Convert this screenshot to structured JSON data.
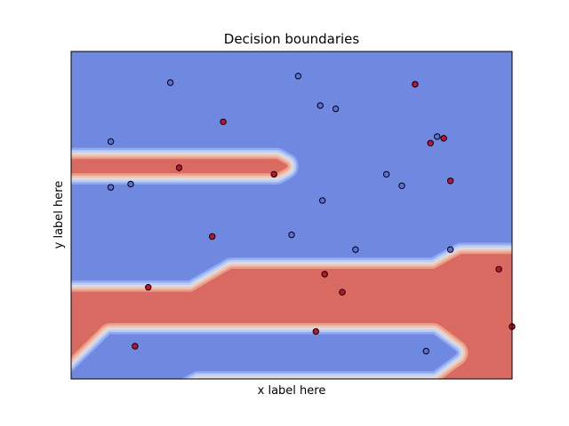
{
  "chart_data": {
    "type": "scatter",
    "title": "Decision boundaries",
    "xlabel": "x label here",
    "ylabel": "y label here",
    "xlim": [
      0,
      100
    ],
    "ylim": [
      0,
      100
    ],
    "ticks_visible": false,
    "grid": false,
    "legend": "none",
    "background": "filled decision-region contours (coolwarm)",
    "class_colors": {
      "0": "#5a6fd8",
      "1": "#c8102e"
    },
    "region_colors": {
      "0": "#7089e0",
      "1": "#d86a62"
    },
    "band_colors": [
      "#7089e0",
      "#93abf0",
      "#b8cdf8",
      "#dcdcdc",
      "#f2c1ad",
      "#eb9d86",
      "#d86a62"
    ],
    "regions": [
      {
        "class": 1,
        "shape": "upper-left arrow band",
        "points": [
          [
            0,
            66.5
          ],
          [
            46.5,
            66.5
          ],
          [
            48.5,
            65
          ],
          [
            46.5,
            63.5
          ],
          [
            0,
            63.5
          ]
        ]
      },
      {
        "class": 1,
        "shape": "lower-right region",
        "points": [
          [
            0,
            26
          ],
          [
            27.5,
            26
          ],
          [
            36.5,
            33
          ],
          [
            82.5,
            33
          ],
          [
            88.5,
            37.5
          ],
          [
            100,
            37.5
          ],
          [
            100,
            0
          ],
          [
            0,
            0
          ]
        ]
      },
      {
        "class": 0,
        "shape": "bottom arrow band",
        "points": [
          [
            0,
            1
          ],
          [
            9,
            13
          ],
          [
            82,
            13
          ],
          [
            87,
            8
          ],
          [
            82,
            3
          ],
          [
            28,
            3
          ],
          [
            24,
            0
          ],
          [
            0,
            0
          ]
        ]
      }
    ],
    "series": [
      {
        "class": 0,
        "points": [
          [
            22.5,
            90.5
          ],
          [
            51.5,
            92.5
          ],
          [
            56.5,
            83.5
          ],
          [
            60,
            82.5
          ],
          [
            9,
            72.5
          ],
          [
            83,
            74
          ],
          [
            9,
            58.5
          ],
          [
            13.5,
            59.5
          ],
          [
            75,
            59
          ],
          [
            71.5,
            62.5
          ],
          [
            57,
            54.5
          ],
          [
            50,
            44
          ],
          [
            64.5,
            39.5
          ],
          [
            86,
            39.5
          ],
          [
            80.5,
            8.5
          ]
        ]
      },
      {
        "class": 1,
        "points": [
          [
            78,
            90
          ],
          [
            34.5,
            78.5
          ],
          [
            84.5,
            73.5
          ],
          [
            81.5,
            72
          ],
          [
            24.5,
            64.5
          ],
          [
            46,
            62.5
          ],
          [
            86,
            60.5
          ],
          [
            32,
            43.5
          ],
          [
            57.5,
            32
          ],
          [
            17.5,
            28
          ],
          [
            61.5,
            26.5
          ],
          [
            97,
            33.5
          ],
          [
            55.5,
            14.5
          ],
          [
            14.5,
            10
          ],
          [
            100,
            16
          ]
        ]
      }
    ]
  }
}
